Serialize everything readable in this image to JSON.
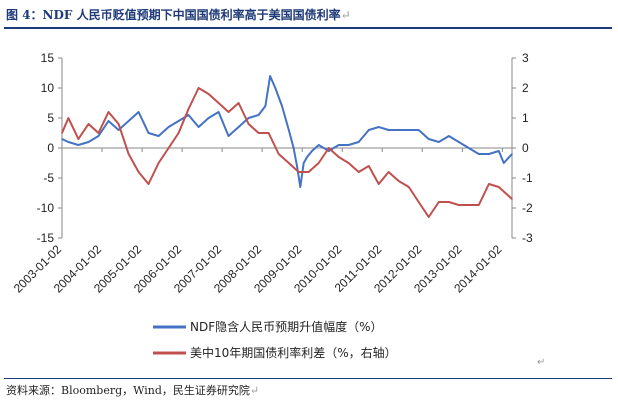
{
  "figure": {
    "title": "图 4：NDF 人民币贬值预期下中国国债利率高于美国国债利率",
    "paragraph_mark": "↵",
    "source": "资料来源：Bloomberg，Wind，民生证券研究院"
  },
  "chart_data": {
    "type": "line",
    "x_tick_labels": [
      "2003-01-02",
      "2004-01-02",
      "2005-01-02",
      "2006-01-02",
      "2007-01-02",
      "2008-01-02",
      "2009-01-02",
      "2010-01-02",
      "2011-01-02",
      "2012-01-02",
      "2013-01-02",
      "2014-01-02"
    ],
    "xlim": [
      "2003-01-02",
      "2014-03-31"
    ],
    "y_left": {
      "lim": [
        -15,
        15
      ],
      "ticks": [
        15,
        10,
        5,
        0,
        -5,
        -10,
        -15
      ]
    },
    "y_right": {
      "lim": [
        -3,
        3
      ],
      "ticks": [
        3,
        2,
        1,
        0,
        -1,
        -2,
        -3
      ]
    },
    "series": [
      {
        "name": "NDF隐含人民币预期升值幅度（%）",
        "axis": "left",
        "color": "#4472C4",
        "x": [
          "2003-01-02",
          "2003-03-01",
          "2003-06-01",
          "2003-09-01",
          "2003-12-01",
          "2004-03-01",
          "2004-06-01",
          "2004-09-01",
          "2004-12-01",
          "2005-03-01",
          "2005-06-01",
          "2005-09-01",
          "2005-12-01",
          "2006-03-01",
          "2006-06-01",
          "2006-09-01",
          "2006-12-01",
          "2007-03-01",
          "2007-06-01",
          "2007-09-01",
          "2007-12-01",
          "2008-02-01",
          "2008-03-15",
          "2008-05-01",
          "2008-07-01",
          "2008-09-01",
          "2008-10-15",
          "2008-11-15",
          "2008-12-15",
          "2009-01-15",
          "2009-02-15",
          "2009-04-01",
          "2009-06-01",
          "2009-09-01",
          "2009-12-01",
          "2010-03-01",
          "2010-06-01",
          "2010-09-01",
          "2010-12-01",
          "2011-03-01",
          "2011-06-01",
          "2011-09-01",
          "2011-12-01",
          "2012-03-01",
          "2012-06-01",
          "2012-09-01",
          "2012-12-01",
          "2013-03-01",
          "2013-06-01",
          "2013-09-01",
          "2013-12-01",
          "2014-01-15",
          "2014-03-31"
        ],
        "y": [
          1.5,
          1,
          0.5,
          1,
          2,
          4.5,
          3,
          4.5,
          6,
          2.5,
          2,
          3.5,
          4.5,
          5.5,
          3.5,
          5,
          6,
          2,
          3.5,
          5,
          5.5,
          7,
          12,
          10,
          7,
          3,
          0,
          -3,
          -6.5,
          -2.5,
          -1.5,
          -0.5,
          0.5,
          -0.5,
          0.5,
          0.5,
          1,
          3,
          3.5,
          3,
          3,
          3,
          3,
          1.5,
          1,
          2,
          1,
          0,
          -1,
          -1,
          -0.5,
          -2.5,
          -1
        ]
      },
      {
        "name": "美中10年期国债利率利差（%，右轴）",
        "axis": "right",
        "color": "#C0504D",
        "x": [
          "2003-01-02",
          "2003-03-01",
          "2003-06-01",
          "2003-09-01",
          "2003-12-01",
          "2004-03-01",
          "2004-06-01",
          "2004-09-01",
          "2004-12-01",
          "2005-03-01",
          "2005-06-01",
          "2005-09-01",
          "2005-12-01",
          "2006-03-01",
          "2006-06-01",
          "2006-09-01",
          "2006-12-01",
          "2007-03-01",
          "2007-06-01",
          "2007-09-01",
          "2007-12-01",
          "2008-03-01",
          "2008-06-01",
          "2008-09-01",
          "2008-12-01",
          "2009-03-01",
          "2009-06-01",
          "2009-09-01",
          "2009-12-01",
          "2010-03-01",
          "2010-06-01",
          "2010-09-01",
          "2010-12-01",
          "2011-03-01",
          "2011-06-01",
          "2011-09-01",
          "2011-12-01",
          "2012-03-01",
          "2012-06-01",
          "2012-09-01",
          "2012-12-01",
          "2013-03-01",
          "2013-06-01",
          "2013-09-01",
          "2013-12-01",
          "2014-03-31"
        ],
        "y": [
          0.5,
          1,
          0.3,
          0.8,
          0.5,
          1.2,
          0.8,
          -0.2,
          -0.8,
          -1.2,
          -0.5,
          0,
          0.5,
          1.3,
          2,
          1.8,
          1.5,
          1.2,
          1.5,
          0.8,
          0.5,
          0.5,
          -0.2,
          -0.5,
          -0.8,
          -0.8,
          -0.5,
          0,
          -0.3,
          -0.5,
          -0.8,
          -0.6,
          -1.2,
          -0.8,
          -1.1,
          -1.3,
          -1.8,
          -2.3,
          -1.8,
          -1.8,
          -1.9,
          -1.9,
          -1.9,
          -1.2,
          -1.3,
          -1.7
        ]
      }
    ]
  }
}
